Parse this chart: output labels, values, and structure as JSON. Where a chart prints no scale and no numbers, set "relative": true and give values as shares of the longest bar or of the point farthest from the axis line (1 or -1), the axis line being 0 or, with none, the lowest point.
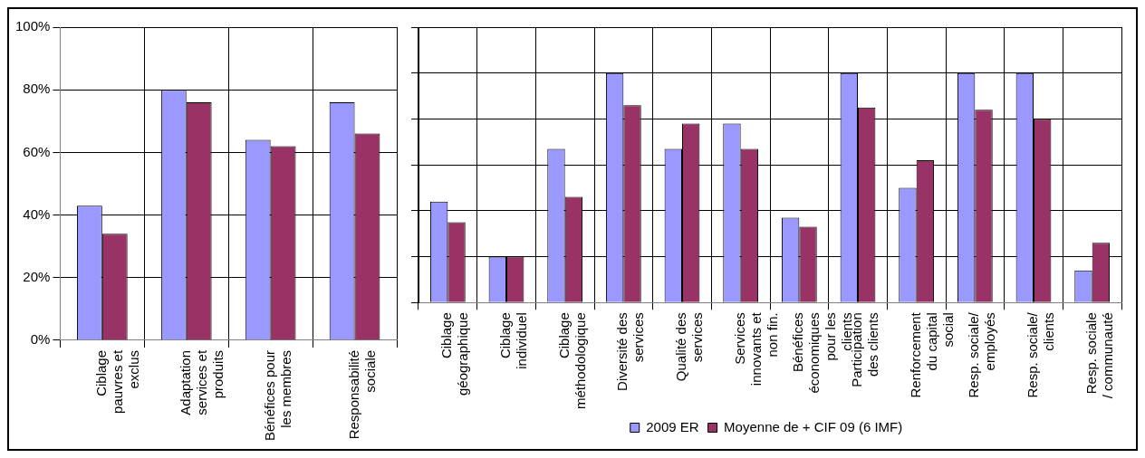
{
  "chart_data": [
    {
      "type": "bar",
      "categories": [
        "Ciblage pauvres et exclus",
        "Adaptation services et produits",
        "Bénéfices pour les membres",
        "Responsabilité sociale"
      ],
      "series": [
        {
          "color": "#9999ff",
          "values": [
            43,
            80,
            64,
            76
          ]
        },
        {
          "color": "#993366",
          "values": [
            34,
            76,
            62,
            66
          ]
        }
      ],
      "ylim": [
        0,
        100
      ],
      "yticks": [
        {
          "value": 0,
          "label": "0%"
        },
        {
          "value": 20,
          "label": "20%"
        },
        {
          "value": 40,
          "label": "40%"
        },
        {
          "value": 60,
          "label": "60%"
        },
        {
          "value": 80,
          "label": "80%"
        },
        {
          "value": 100,
          "label": "100%"
        }
      ],
      "grid": true,
      "legend": false
    },
    {
      "type": "bar",
      "relative": true,
      "categories": [
        "Ciblage géographique",
        "Ciblage individuel",
        "Ciblage méthodologique",
        "Diversité des services",
        "Qualité des services",
        "Services innovants et non fin.",
        "Bénéfices économiques pour les clients",
        "Participation des clients",
        "Renforcement du capital social",
        "Resp. sociale/ employés",
        "Resp. sociale/ clients",
        "Resp. sociale / communauté"
      ],
      "series": [
        {
          "name": "2009 ER",
          "color": "#9999ff",
          "values": [
            0.44,
            0.2,
            0.67,
            1,
            0.67,
            0.78,
            0.37,
            1,
            0.5,
            1,
            1,
            0.14
          ]
        },
        {
          "name": "Moyenne de + CIF 09 (6 IMF)",
          "color": "#993366",
          "values": [
            0.35,
            0.2,
            0.46,
            0.86,
            0.78,
            0.67,
            0.33,
            0.85,
            0.62,
            0.84,
            0.8,
            0.26
          ]
        }
      ],
      "grid": true,
      "legend": "bottom"
    }
  ]
}
